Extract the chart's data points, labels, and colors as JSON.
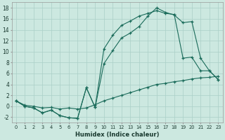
{
  "xlabel": "Humidex (Indice chaleur)",
  "xlim": [
    -0.5,
    23.5
  ],
  "ylim": [
    -3.0,
    19.0
  ],
  "bg_color": "#cce8e0",
  "line_color": "#1a6b5a",
  "grid_color": "#aacfc7",
  "xticks": [
    0,
    1,
    2,
    3,
    4,
    5,
    6,
    7,
    8,
    9,
    10,
    11,
    12,
    13,
    14,
    15,
    16,
    17,
    18,
    19,
    20,
    21,
    22,
    23
  ],
  "yticks": [
    -2,
    0,
    2,
    4,
    6,
    8,
    10,
    12,
    14,
    16,
    18
  ],
  "line1_x": [
    0,
    1,
    2,
    3,
    4,
    5,
    6,
    7,
    8,
    9,
    10,
    11,
    12,
    13,
    14,
    15,
    16,
    17,
    18,
    19,
    20,
    21,
    22,
    23
  ],
  "line1_y": [
    1.0,
    0.0,
    -0.3,
    -1.2,
    -0.7,
    -1.7,
    -2.1,
    -2.2,
    3.4,
    -0.2,
    10.5,
    13.0,
    14.8,
    15.6,
    16.5,
    17.0,
    17.5,
    17.0,
    16.8,
    8.8,
    9.0,
    6.5,
    6.5,
    4.9
  ],
  "line2_x": [
    0,
    1,
    2,
    3,
    4,
    5,
    6,
    7,
    8,
    9,
    10,
    11,
    12,
    13,
    14,
    15,
    16,
    17,
    18,
    19,
    20,
    21,
    22,
    23
  ],
  "line2_y": [
    1.0,
    0.0,
    -0.3,
    -1.2,
    -0.7,
    -1.7,
    -2.1,
    -2.2,
    3.4,
    -0.2,
    7.8,
    10.2,
    12.5,
    13.4,
    14.6,
    16.5,
    18.0,
    17.2,
    16.7,
    15.3,
    15.5,
    8.8,
    6.5,
    4.9
  ],
  "line3_x": [
    0,
    1,
    2,
    3,
    4,
    5,
    6,
    7,
    8,
    9,
    10,
    11,
    12,
    13,
    14,
    15,
    16,
    17,
    18,
    19,
    20,
    21,
    22,
    23
  ],
  "line3_y": [
    1.0,
    0.2,
    0.0,
    -0.3,
    -0.2,
    -0.5,
    -0.3,
    -0.5,
    -0.3,
    0.3,
    1.0,
    1.5,
    2.0,
    2.5,
    3.0,
    3.5,
    4.0,
    4.2,
    4.5,
    4.7,
    5.0,
    5.2,
    5.3,
    5.5
  ]
}
